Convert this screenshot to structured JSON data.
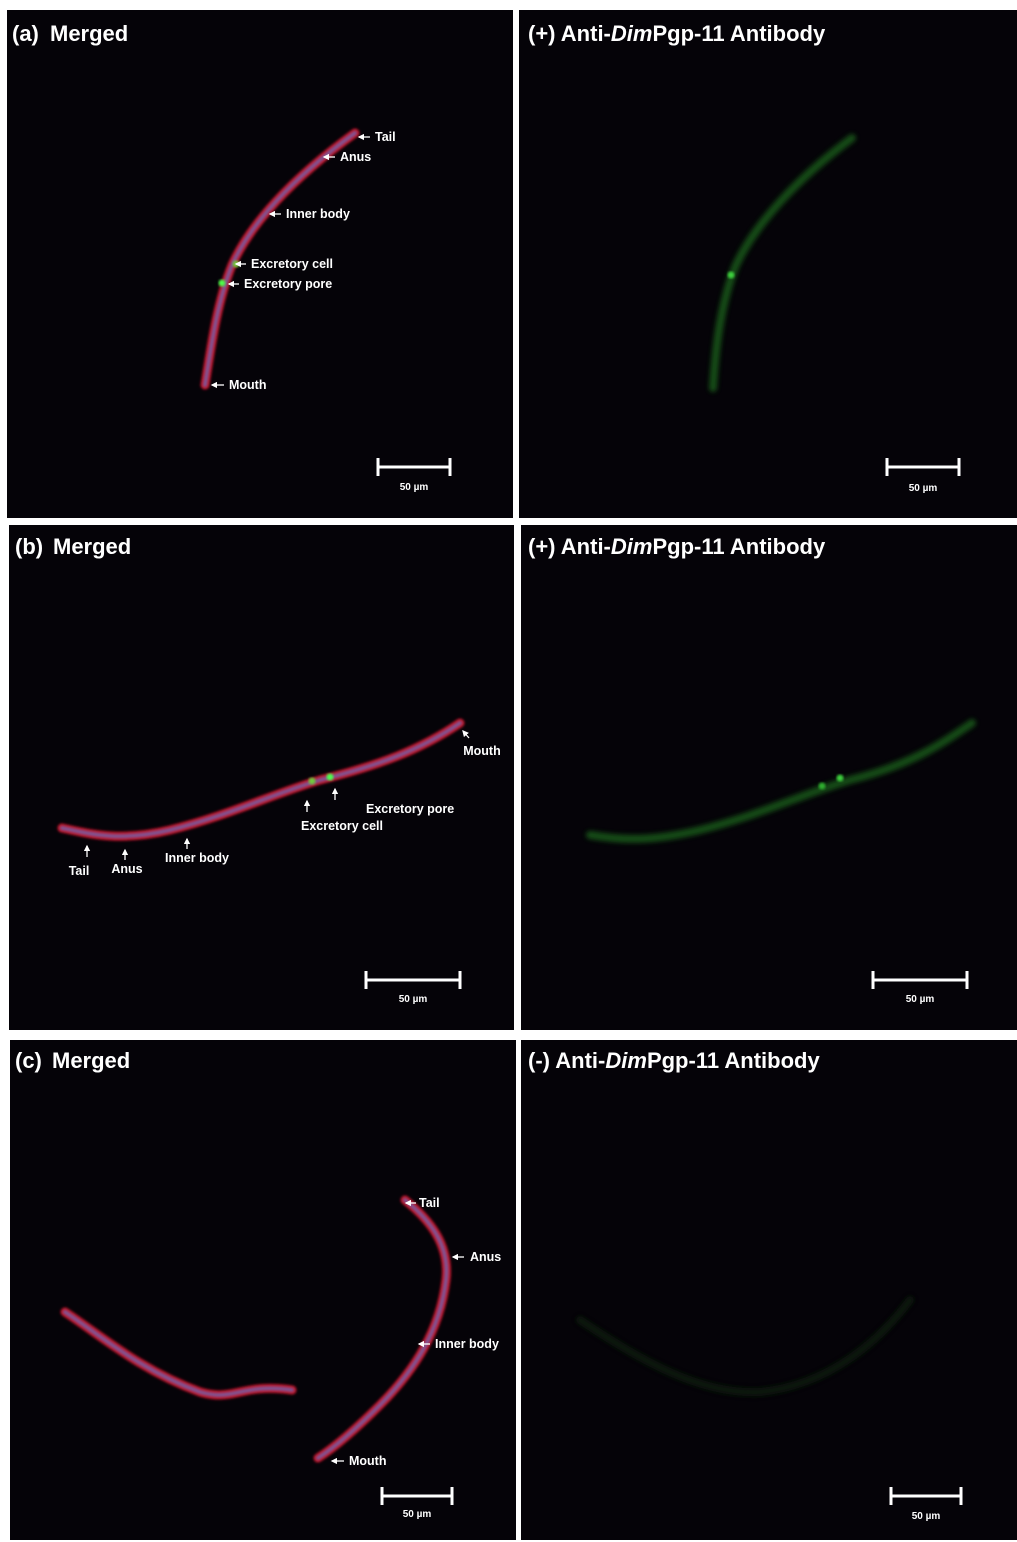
{
  "panels": [
    {
      "label": "(a)",
      "title": "Merged",
      "annotations": [
        "Tail",
        "Anus",
        "Inner body",
        "Excretory cell",
        "Excretory pore",
        "Mouth"
      ],
      "scale_bar": "50 µm"
    },
    {
      "title": {
        "prefix": "(+) Anti-",
        "italic": "Dim",
        "suffix": "Pgp-11 Antibody"
      },
      "scale_bar": "50 µm"
    },
    {
      "label": "(b)",
      "title": "Merged",
      "annotations": [
        "Mouth",
        "Excretory pore",
        "Excretory cell",
        "Tail",
        "Anus",
        "Inner body"
      ],
      "scale_bar": "50 µm"
    },
    {
      "title": {
        "prefix": "(+) Anti-",
        "italic": "Dim",
        "suffix": "Pgp-11 Antibody"
      },
      "scale_bar": "50 µm"
    },
    {
      "label": "(c)",
      "title": "Merged",
      "annotations": [
        "Tail",
        "Anus",
        "Inner body",
        "Mouth"
      ],
      "scale_bar": "50 µm"
    },
    {
      "title": {
        "prefix": "(-) Anti-",
        "italic": "Dim",
        "suffix": "Pgp-11 Antibody"
      },
      "scale_bar": "50 µm"
    }
  ]
}
